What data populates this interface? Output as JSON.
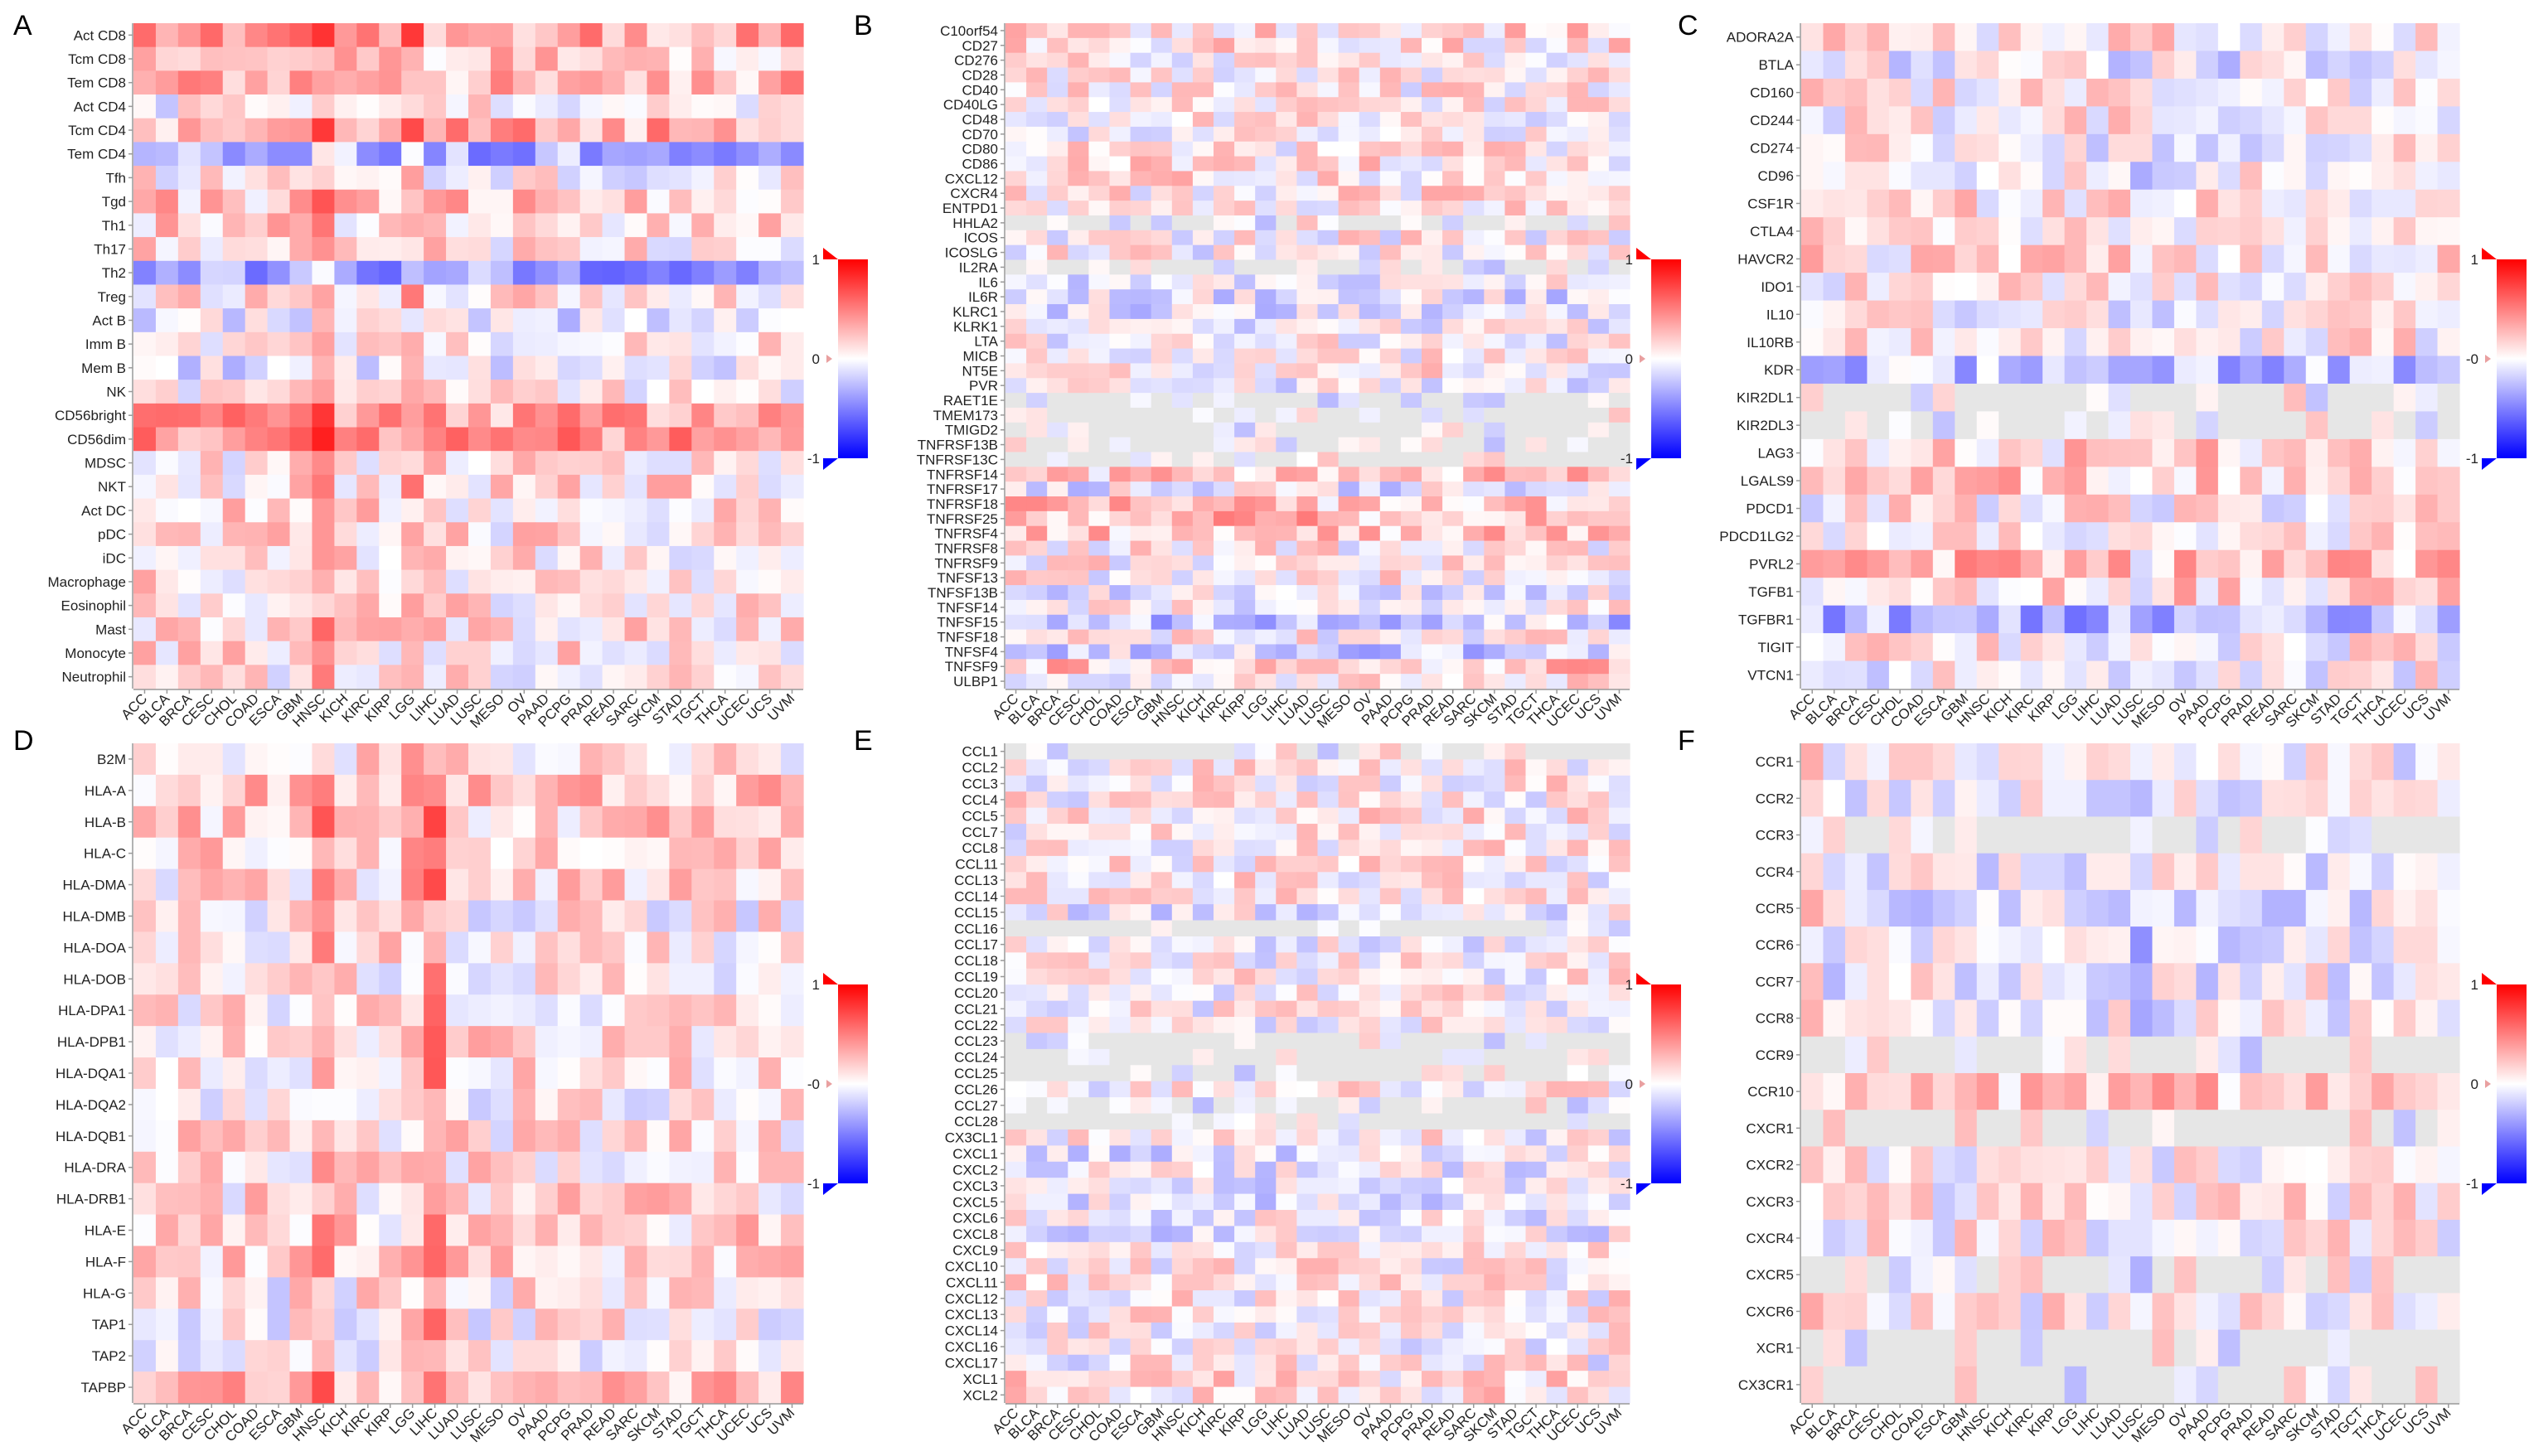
{
  "figure": {
    "title": ""
  },
  "color_scale": {
    "low": "#0000ff",
    "mid": "#ffffff",
    "high": "#ff0000",
    "na": "#e6e6e6",
    "min": -1,
    "max": 1
  },
  "chart_data": [
    {
      "panel": "A",
      "type": "heatmap",
      "rows": [
        "Act CD8",
        "Tcm CD8",
        "Tem CD8",
        "Act CD4",
        "Tcm CD4",
        "Tem CD4",
        "Tfh",
        "Tgd",
        "Th1",
        "Th17",
        "Th2",
        "Treg",
        "Act B",
        "Imm B",
        "Mem B",
        "NK",
        "CD56bright",
        "CD56dim",
        "MDSC",
        "NKT",
        "Act DC",
        "pDC",
        "iDC",
        "Macrophage",
        "Eosinophil",
        "Mast",
        "Monocyte",
        "Neutrophil"
      ],
      "columns": [
        "ACC",
        "BLCA",
        "BRCA",
        "CESC",
        "CHOL",
        "COAD",
        "ESCA",
        "GBM",
        "HNSC",
        "KICH",
        "KIRC",
        "KIRP",
        "LGG",
        "LIHC",
        "LUAD",
        "LUSC",
        "MESO",
        "OV",
        "PAAD",
        "PCPG",
        "PRAD",
        "READ",
        "SARC",
        "SKCM",
        "STAD",
        "TGCT",
        "THCA",
        "UCEC",
        "UCS",
        "UVM"
      ],
      "legend": {
        "max_label": "1",
        "mid_label": "0",
        "min_label": "-1"
      },
      "row_means": [
        0.35,
        0.22,
        0.28,
        0.02,
        0.32,
        -0.32,
        0.05,
        0.2,
        0.15,
        0.1,
        -0.38,
        0.12,
        -0.05,
        0.1,
        -0.08,
        0.05,
        0.35,
        0.4,
        0.1,
        0.12,
        0.12,
        0.1,
        0.1,
        0.12,
        0.1,
        0.12,
        0.12,
        0.05
      ],
      "col_means": [
        0,
        0,
        0,
        0,
        0,
        0,
        0,
        0.05,
        0.22,
        0,
        0,
        0,
        0.2,
        0,
        0,
        0,
        0,
        0,
        0,
        0,
        0.02,
        0,
        0,
        0,
        0,
        0,
        0,
        0,
        0,
        0
      ],
      "values": []
    },
    {
      "panel": "B",
      "type": "heatmap",
      "rows": [
        "C10orf54",
        "CD27",
        "CD276",
        "CD28",
        "CD40",
        "CD40LG",
        "CD48",
        "CD70",
        "CD80",
        "CD86",
        "CXCL12",
        "CXCR4",
        "ENTPD1",
        "HHLA2",
        "ICOS",
        "ICOSLG",
        "IL2RA",
        "IL6",
        "IL6R",
        "KLRC1",
        "KLRK1",
        "LTA",
        "MICB",
        "NT5E",
        "PVR",
        "RAET1E",
        "TMEM173",
        "TMIGD2",
        "TNFRSF13B",
        "TNFRSF13C",
        "TNFRSF14",
        "TNFRSF17",
        "TNFRSF18",
        "TNFRSF25",
        "TNFRSF4",
        "TNFRSF8",
        "TNFRSF9",
        "TNFSF13",
        "TNFSF13B",
        "TNFSF14",
        "TNFSF15",
        "TNFSF18",
        "TNFSF4",
        "TNFSF9",
        "ULBP1"
      ],
      "columns": [
        "ACC",
        "BLCA",
        "BRCA",
        "CESC",
        "CHOL",
        "COAD",
        "ESCA",
        "GBM",
        "HNSC",
        "KICH",
        "KIRC",
        "KIRP",
        "LGG",
        "LIHC",
        "LUAD",
        "LUSC",
        "MESO",
        "OV",
        "PAAD",
        "PCPG",
        "PRAD",
        "READ",
        "SARC",
        "SKCM",
        "STAD",
        "TGCT",
        "THCA",
        "UCEC",
        "UCS",
        "UVM"
      ],
      "legend": {
        "max_label": "1",
        "mid_label": "0",
        "min_label": "-1"
      },
      "row_means": [
        0.15,
        0.1,
        0.05,
        0.05,
        0.05,
        0.02,
        0.05,
        0.02,
        0.05,
        0.1,
        0.1,
        0.08,
        0.1,
        0,
        0.05,
        0.02,
        0,
        -0.02,
        -0.1,
        -0.08,
        -0.05,
        0.02,
        0.05,
        0.05,
        -0.05,
        0,
        0,
        0,
        0,
        0,
        0.2,
        -0.05,
        0.2,
        0.25,
        0.2,
        0.05,
        0.05,
        0.05,
        -0.05,
        0.02,
        -0.2,
        0.05,
        -0.15,
        0.2,
        0.05
      ],
      "col_means": [
        0,
        0,
        0,
        0,
        0,
        0,
        0,
        0,
        0,
        0,
        0,
        0,
        0,
        0,
        0,
        0,
        0,
        0,
        0,
        0,
        0,
        0,
        0,
        0,
        0,
        0,
        0,
        0,
        0,
        0
      ],
      "values": []
    },
    {
      "panel": "C",
      "type": "heatmap",
      "rows": [
        "ADORA2A",
        "BTLA",
        "CD160",
        "CD244",
        "CD274",
        "CD96",
        "CSF1R",
        "CTLA4",
        "HAVCR2",
        "IDO1",
        "IL10",
        "IL10RB",
        "KDR",
        "KIR2DL1",
        "KIR2DL3",
        "LAG3",
        "LGALS9",
        "PDCD1",
        "PDCD1LG2",
        "PVRL2",
        "TGFB1",
        "TGFBR1",
        "TIGIT",
        "VTCN1"
      ],
      "columns": [
        "ACC",
        "BLCA",
        "BRCA",
        "CESC",
        "CHOL",
        "COAD",
        "ESCA",
        "GBM",
        "HNSC",
        "KICH",
        "KIRC",
        "KIRP",
        "LGG",
        "LIHC",
        "LUAD",
        "LUSC",
        "MESO",
        "OV",
        "PAAD",
        "PCPG",
        "PRAD",
        "READ",
        "SARC",
        "SKCM",
        "STAD",
        "TGCT",
        "THCA",
        "UCEC",
        "UCS",
        "UVM"
      ],
      "legend": {
        "max_label": "1",
        "mid_label": "-0",
        "min_label": "-1"
      },
      "row_means": [
        0.1,
        -0.05,
        0.05,
        0.05,
        0.02,
        0.05,
        0.1,
        0.05,
        0.12,
        0.05,
        0.02,
        0.05,
        -0.25,
        0,
        0,
        0.15,
        0.2,
        0.05,
        0.1,
        0.25,
        0.15,
        -0.3,
        0.05,
        0.02
      ],
      "col_means": [
        0,
        0,
        0,
        0,
        0,
        0,
        0,
        0,
        0,
        0,
        0,
        0,
        0,
        0,
        0,
        -0.15,
        0,
        0,
        0,
        0,
        0,
        0,
        0,
        0,
        0,
        0,
        0,
        0,
        0,
        0
      ],
      "values": []
    },
    {
      "panel": "D",
      "type": "heatmap",
      "rows": [
        "B2M",
        "HLA-A",
        "HLA-B",
        "HLA-C",
        "HLA-DMA",
        "HLA-DMB",
        "HLA-DOA",
        "HLA-DOB",
        "HLA-DPA1",
        "HLA-DPB1",
        "HLA-DQA1",
        "HLA-DQA2",
        "HLA-DQB1",
        "HLA-DRA",
        "HLA-DRB1",
        "HLA-E",
        "HLA-F",
        "HLA-G",
        "TAP1",
        "TAP2",
        "TAPBP"
      ],
      "columns": [
        "ACC",
        "BLCA",
        "BRCA",
        "CESC",
        "CHOL",
        "COAD",
        "ESCA",
        "GBM",
        "HNSC",
        "KICH",
        "KIRC",
        "KIRP",
        "LGG",
        "LIHC",
        "LUAD",
        "LUSC",
        "MESO",
        "OV",
        "PAAD",
        "PCPG",
        "PRAD",
        "READ",
        "SARC",
        "SKCM",
        "STAD",
        "TGCT",
        "THCA",
        "UCEC",
        "UCS",
        "UVM"
      ],
      "legend": {
        "max_label": "1",
        "mid_label": "-0",
        "min_label": "-1"
      },
      "row_means": [
        0.1,
        0.25,
        0.2,
        0.2,
        0.12,
        0.05,
        0.1,
        0.05,
        0.12,
        0.12,
        0.1,
        0.05,
        0.1,
        0.12,
        0.12,
        0.15,
        0.15,
        0.08,
        0.05,
        0.05,
        0.3
      ],
      "col_means": [
        0,
        0,
        0,
        0,
        0,
        0,
        -0.05,
        0,
        0.2,
        0,
        0,
        0,
        0.15,
        0.35,
        0,
        0,
        0,
        0,
        0,
        0,
        0,
        0,
        0,
        0,
        0,
        0,
        0,
        0,
        0,
        0
      ],
      "values": []
    },
    {
      "panel": "E",
      "type": "heatmap",
      "rows": [
        "CCL1",
        "CCL2",
        "CCL3",
        "CCL4",
        "CCL5",
        "CCL7",
        "CCL8",
        "CCL11",
        "CCL13",
        "CCL14",
        "CCL15",
        "CCL16",
        "CCL17",
        "CCL18",
        "CCL19",
        "CCL20",
        "CCL21",
        "CCL22",
        "CCL23",
        "CCL24",
        "CCL25",
        "CCL26",
        "CCL27",
        "CCL28",
        "CX3CL1",
        "CXCL1",
        "CXCL2",
        "CXCL3",
        "CXCL5",
        "CXCL6",
        "CXCL8",
        "CXCL9",
        "CXCL10",
        "CXCL11",
        "CXCL12",
        "CXCL13",
        "CXCL14",
        "CXCL16",
        "CXCL17",
        "XCL1",
        "XCL2"
      ],
      "columns": [
        "ACC",
        "BLCA",
        "BRCA",
        "CESC",
        "CHOL",
        "COAD",
        "ESCA",
        "GBM",
        "HNSC",
        "KICH",
        "KIRC",
        "KIRP",
        "LGG",
        "LIHC",
        "LUAD",
        "LUSC",
        "MESO",
        "OV",
        "PAAD",
        "PCPG",
        "PRAD",
        "READ",
        "SARC",
        "SKCM",
        "STAD",
        "TGCT",
        "THCA",
        "UCEC",
        "UCS",
        "UVM"
      ],
      "legend": {
        "max_label": "1",
        "mid_label": "0",
        "min_label": "-1"
      },
      "row_means": [
        0,
        0.05,
        0.05,
        0.05,
        0.08,
        0.05,
        0.05,
        0.05,
        0.05,
        0.05,
        -0.05,
        0,
        0.02,
        0.02,
        0.05,
        0.02,
        0.02,
        0.02,
        0,
        0,
        0,
        0.05,
        0,
        0,
        0.02,
        -0.05,
        -0.05,
        -0.05,
        -0.05,
        -0.02,
        -0.05,
        0.05,
        0.05,
        0.05,
        0.05,
        0.05,
        0.05,
        0.02,
        0.02,
        0.1,
        0.1
      ],
      "col_means": [
        0,
        0,
        0,
        0,
        0,
        0,
        0,
        0,
        0,
        0,
        0,
        0,
        0,
        0,
        0,
        0,
        0,
        0,
        0,
        0,
        0,
        0,
        0,
        0,
        0,
        0,
        0,
        0,
        0,
        0
      ],
      "values": []
    },
    {
      "panel": "F",
      "type": "heatmap",
      "rows": [
        "CCR1",
        "CCR2",
        "CCR3",
        "CCR4",
        "CCR5",
        "CCR6",
        "CCR7",
        "CCR8",
        "CCR9",
        "CCR10",
        "CXCR1",
        "CXCR2",
        "CXCR3",
        "CXCR4",
        "CXCR5",
        "CXCR6",
        "XCR1",
        "CX3CR1"
      ],
      "columns": [
        "ACC",
        "BLCA",
        "BRCA",
        "CESC",
        "CHOL",
        "COAD",
        "ESCA",
        "GBM",
        "HNSC",
        "KICH",
        "KIRC",
        "KIRP",
        "LGG",
        "LIHC",
        "LUAD",
        "LUSC",
        "MESO",
        "OV",
        "PAAD",
        "PCPG",
        "PRAD",
        "READ",
        "SARC",
        "SKCM",
        "STAD",
        "TGCT",
        "THCA",
        "UCEC",
        "UCS",
        "UVM"
      ],
      "legend": {
        "max_label": "1",
        "mid_label": "0",
        "min_label": "-1"
      },
      "row_means": [
        -0.05,
        -0.05,
        0,
        -0.05,
        -0.05,
        -0.08,
        -0.02,
        -0.02,
        0,
        0.2,
        0,
        0.05,
        0.05,
        0.05,
        0,
        0.05,
        0,
        0
      ],
      "col_means": [
        0.15,
        0,
        0,
        0,
        0,
        0,
        0,
        0,
        0,
        0,
        0,
        0,
        0,
        0,
        0,
        -0.15,
        0,
        0,
        0,
        0,
        0,
        0,
        0,
        0,
        0,
        0,
        0,
        0,
        0,
        0
      ],
      "values": []
    }
  ]
}
